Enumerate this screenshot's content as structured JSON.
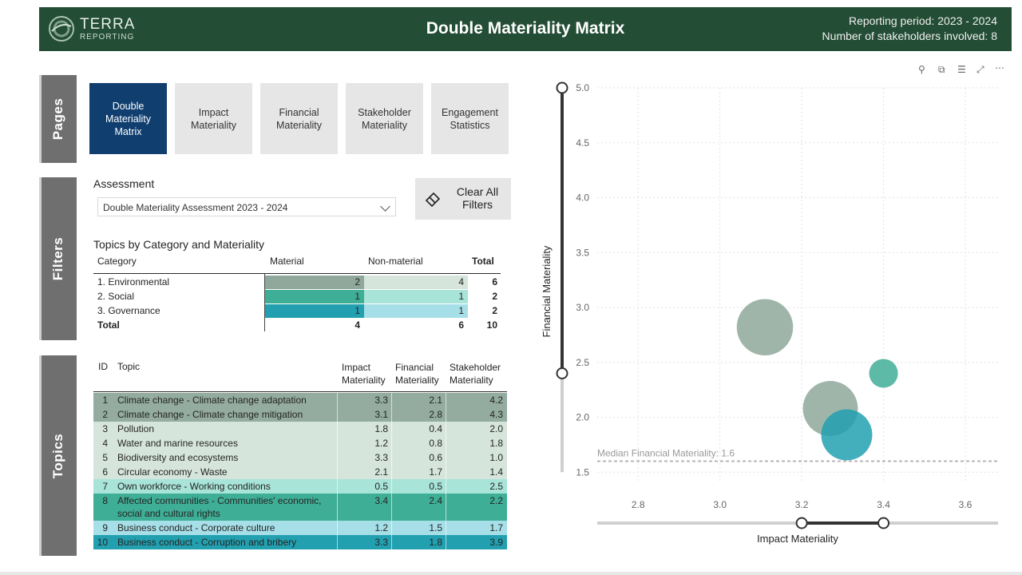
{
  "header": {
    "logo_name": "TERRA",
    "logo_sub": "REPORTING",
    "title": "Double Materiality Matrix",
    "period": "Reporting period: 2023 - 2024",
    "stakeholders": "Number of stakeholders involved: 8"
  },
  "sections": {
    "pages": "Pages",
    "filters": "Filters",
    "topics": "Topics"
  },
  "nav": [
    {
      "label": "Double Materiality Matrix",
      "active": true
    },
    {
      "label": "Impact Materiality",
      "active": false
    },
    {
      "label": "Financial Materiality",
      "active": false
    },
    {
      "label": "Stakeholder Materiality",
      "active": false
    },
    {
      "label": "Engagement Statistics",
      "active": false
    }
  ],
  "filters": {
    "assessment_label": "Assessment",
    "assessment_value": "Double Materiality Assessment 2023 - 2024",
    "clear_label": "Clear All Filters"
  },
  "category_table": {
    "title": "Topics by Category and Materiality",
    "headers": {
      "category": "Category",
      "material": "Material",
      "non_material": "Non-material",
      "total": "Total"
    },
    "rows": [
      {
        "category": "1. Environmental",
        "material": "2",
        "non_material": "4",
        "total": "6",
        "mat_color": "#8fa89b",
        "non_color": "#d6e5dc"
      },
      {
        "category": "2. Social",
        "material": "1",
        "non_material": "1",
        "total": "2",
        "mat_color": "#3fae96",
        "non_color": "#a8e4d8"
      },
      {
        "category": "3. Governance",
        "material": "1",
        "non_material": "1",
        "total": "2",
        "mat_color": "#22a0b0",
        "non_color": "#a6dfe8"
      }
    ],
    "total_row": {
      "label": "Total",
      "material": "4",
      "non_material": "6",
      "total": "10"
    }
  },
  "topics_table": {
    "headers": {
      "id": "ID",
      "topic": "Topic",
      "impact": "Impact Materiality",
      "financial": "Financial Materiality",
      "stakeholder": "Stakeholder Materiality"
    },
    "rows": [
      {
        "id": "1",
        "topic": "Climate change - Climate change adaptation",
        "impact": "3.3",
        "financial": "2.1",
        "stakeholder": "4.2",
        "color": "#93ac9f"
      },
      {
        "id": "2",
        "topic": "Climate change - Climate change mitigation",
        "impact": "3.1",
        "financial": "2.8",
        "stakeholder": "4.3",
        "color": "#93ac9f"
      },
      {
        "id": "3",
        "topic": "Pollution",
        "impact": "1.8",
        "financial": "0.4",
        "stakeholder": "2.0",
        "color": "#d6e5dc"
      },
      {
        "id": "4",
        "topic": "Water and marine resources",
        "impact": "1.2",
        "financial": "0.8",
        "stakeholder": "1.8",
        "color": "#d6e5dc"
      },
      {
        "id": "5",
        "topic": "Biodiversity and ecosystems",
        "impact": "3.3",
        "financial": "0.6",
        "stakeholder": "1.0",
        "color": "#d6e5dc"
      },
      {
        "id": "6",
        "topic": "Circular economy - Waste",
        "impact": "2.1",
        "financial": "1.7",
        "stakeholder": "1.4",
        "color": "#d6e5dc"
      },
      {
        "id": "7",
        "topic": "Own workforce - Working conditions",
        "impact": "0.5",
        "financial": "0.5",
        "stakeholder": "2.5",
        "color": "#a8e4d8"
      },
      {
        "id": "8",
        "topic": "Affected communities - Communities' economic,",
        "topic2": "social and cultural rights",
        "impact": "3.4",
        "financial": "2.4",
        "stakeholder": "2.2",
        "color": "#3fae96"
      },
      {
        "id": "9",
        "topic": "Business conduct - Corporate culture",
        "impact": "1.2",
        "financial": "1.5",
        "stakeholder": "1.7",
        "color": "#a6dfe8"
      },
      {
        "id": "10",
        "topic": "Business conduct - Corruption and bribery",
        "impact": "3.3",
        "financial": "1.8",
        "stakeholder": "3.9",
        "color": "#22a0b0"
      }
    ]
  },
  "chart_data": {
    "type": "scatter",
    "title": "",
    "xlabel": "Impact Materiality",
    "ylabel": "Financial Materiality",
    "xlim": [
      2.7,
      3.68
    ],
    "ylim": [
      1.4,
      5.0
    ],
    "x_ticks": [
      "2.8",
      "3.0",
      "3.2",
      "3.4",
      "3.6"
    ],
    "y_ticks": [
      "1.5",
      "2.0",
      "2.5",
      "3.0",
      "3.5",
      "4.0",
      "4.5",
      "5.0"
    ],
    "median_label": "Median Financial Materiality: 1.6",
    "median_value": 1.6,
    "points": [
      {
        "id": "2",
        "x": 3.11,
        "y": 2.82,
        "size": 4.3,
        "color": "#8fa89b"
      },
      {
        "id": "8",
        "x": 3.4,
        "y": 2.4,
        "size": 2.2,
        "color": "#3fae96"
      },
      {
        "id": "1",
        "x": 3.27,
        "y": 2.08,
        "size": 4.2,
        "color": "#8fa89b"
      },
      {
        "id": "10",
        "x": 3.31,
        "y": 1.84,
        "size": 3.9,
        "color": "#22a0b0"
      }
    ],
    "y_slider": {
      "low": 1.5,
      "high": 2.4,
      "top": 5.0
    },
    "x_slider": {
      "low": 3.2,
      "high": 3.4
    }
  }
}
